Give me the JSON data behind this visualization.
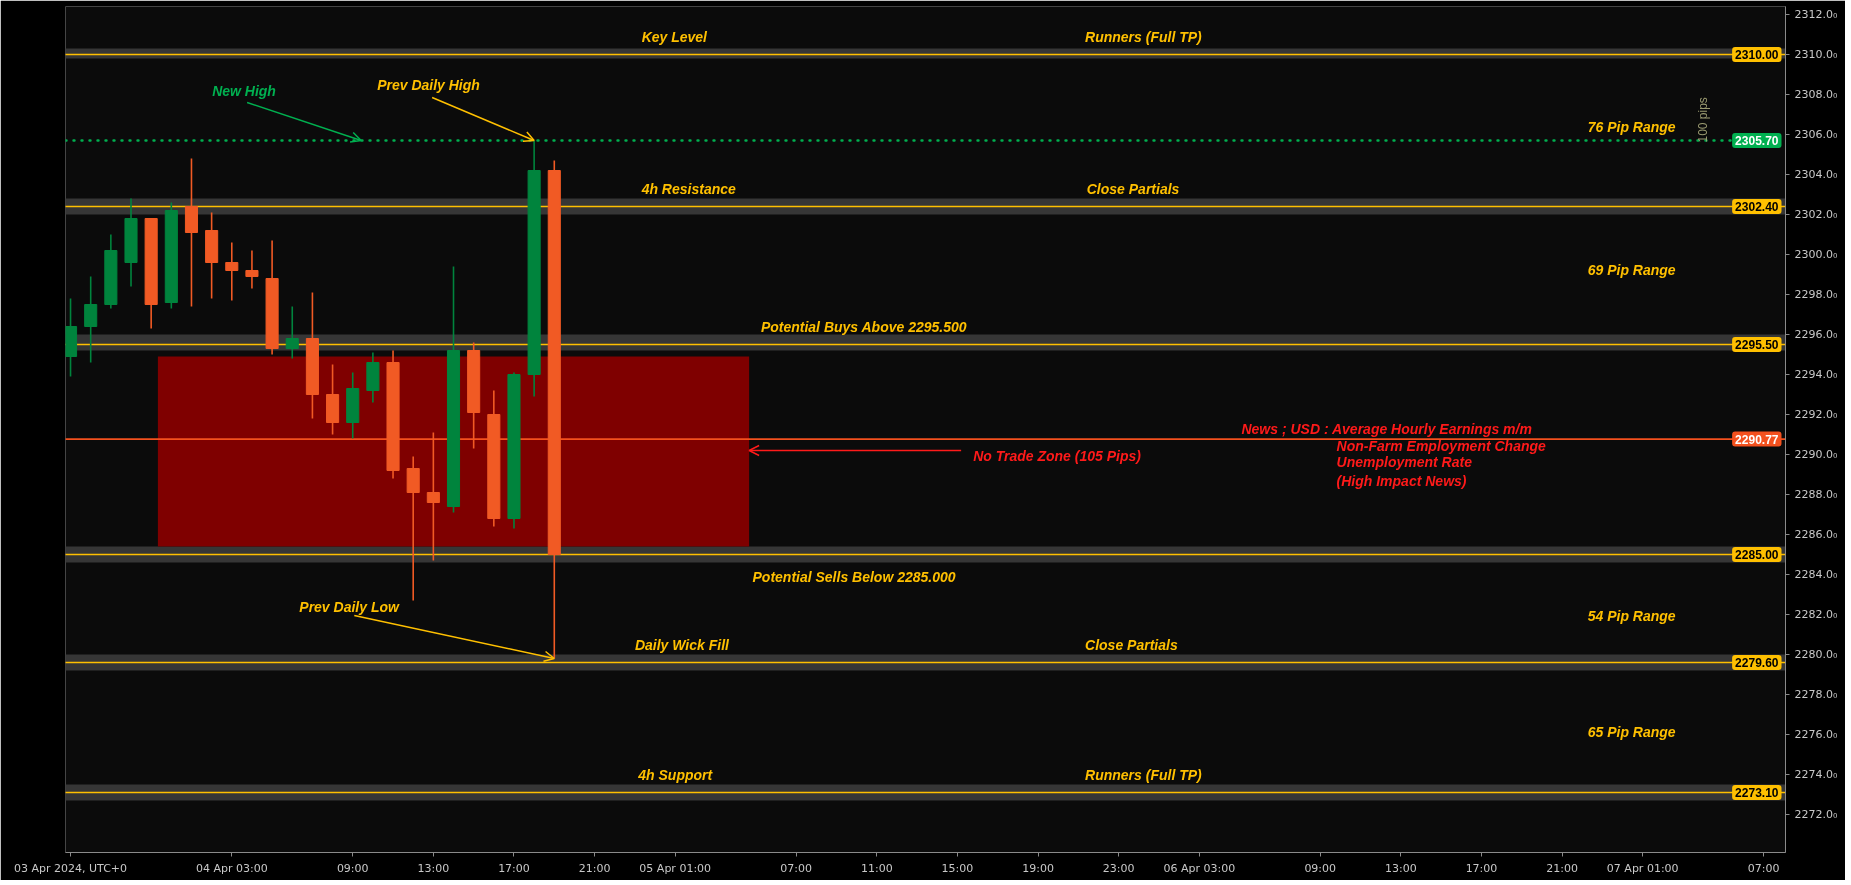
{
  "chart_data": {
    "type": "candlestick",
    "xlim": [
      "2024-04-03T18:45",
      "2024-04-07T08:05"
    ],
    "ylim": [
      2270.1,
      2312.4
    ],
    "xticks": [
      {
        "value": "2024-04-03T19:00",
        "label": "03 Apr 2024, UTC+0"
      },
      {
        "value": "2024-04-04T03:00",
        "label": "04 Apr 03:00"
      },
      {
        "value": "2024-04-04T09:00",
        "label": "09:00"
      },
      {
        "value": "2024-04-04T13:00",
        "label": "13:00"
      },
      {
        "value": "2024-04-04T17:00",
        "label": "17:00"
      },
      {
        "value": "2024-04-04T21:00",
        "label": "21:00"
      },
      {
        "value": "2024-04-05T01:00",
        "label": "05 Apr 01:00"
      },
      {
        "value": "2024-04-05T07:00",
        "label": "07:00"
      },
      {
        "value": "2024-04-05T11:00",
        "label": "11:00"
      },
      {
        "value": "2024-04-05T15:00",
        "label": "15:00"
      },
      {
        "value": "2024-04-05T19:00",
        "label": "19:00"
      },
      {
        "value": "2024-04-05T23:00",
        "label": "23:00"
      },
      {
        "value": "2024-04-06T03:00",
        "label": "06 Apr 03:00"
      },
      {
        "value": "2024-04-06T09:00",
        "label": "09:00"
      },
      {
        "value": "2024-04-06T13:00",
        "label": "13:00"
      },
      {
        "value": "2024-04-06T17:00",
        "label": "17:00"
      },
      {
        "value": "2024-04-06T21:00",
        "label": "21:00"
      },
      {
        "value": "2024-04-07T01:00",
        "label": "07 Apr 01:00"
      },
      {
        "value": "2024-04-07T07:00",
        "label": "07:00"
      }
    ],
    "yticks": [
      {
        "value": 2272,
        "label": "2272.0₀"
      },
      {
        "value": 2274,
        "label": "2274.0₀"
      },
      {
        "value": 2276,
        "label": "2276.0₀"
      },
      {
        "value": 2278,
        "label": "2278.0₀"
      },
      {
        "value": 2280,
        "label": "2280.0₀"
      },
      {
        "value": 2282,
        "label": "2282.0₀"
      },
      {
        "value": 2284,
        "label": "2284.0₀"
      },
      {
        "value": 2286,
        "label": "2286.0₀"
      },
      {
        "value": 2288,
        "label": "2288.0₀"
      },
      {
        "value": 2290,
        "label": "2290.0₀"
      },
      {
        "value": 2292,
        "label": "2292.0₀"
      },
      {
        "value": 2294,
        "label": "2294.0₀"
      },
      {
        "value": 2296,
        "label": "2296.0₀"
      },
      {
        "value": 2298,
        "label": "2298.0₀"
      },
      {
        "value": 2300,
        "label": "2300.0₀"
      },
      {
        "value": 2302,
        "label": "2302.0₀"
      },
      {
        "value": 2304,
        "label": "2304.0₀"
      },
      {
        "value": 2306,
        "label": "2306.0₀"
      },
      {
        "value": 2308,
        "label": "2308.0₀"
      },
      {
        "value": 2310,
        "label": "2310.0₀"
      },
      {
        "value": 2312,
        "label": "2312.0₀"
      }
    ],
    "series": [
      {
        "type": "area",
        "color": "#7f0000",
        "x": [
          "2024-04-03T23:20",
          "2024-04-05T04:40"
        ],
        "values": [
          2294.9,
          2294.9
        ]
      },
      {
        "x": [
          "2024-04-03T19:00",
          "2024-04-03T20:00",
          "2024-04-03T21:00",
          "2024-04-03T22:00",
          "2024-04-03T23:00",
          "2024-04-04T00:00",
          "2024-04-04T01:00",
          "2024-04-04T02:00",
          "2024-04-04T03:00",
          "2024-04-04T04:00",
          "2024-04-04T05:00",
          "2024-04-04T06:00",
          "2024-04-04T07:00",
          "2024-04-04T08:00",
          "2024-04-04T09:00",
          "2024-04-04T10:00",
          "2024-04-04T11:00",
          "2024-04-04T12:00",
          "2024-04-04T13:00",
          "2024-04-04T14:00",
          "2024-04-04T15:00",
          "2024-04-04T16:00",
          "2024-04-04T17:00",
          "2024-04-04T18:00",
          "2024-04-04T19:00"
        ],
        "ohlc": [
          [
            2294.9,
            2297.8,
            2293.9,
            2296.4
          ],
          [
            2296.4,
            2298.9,
            2294.6,
            2297.5
          ],
          [
            2297.5,
            2301.0,
            2297.3,
            2300.2
          ],
          [
            2299.6,
            2302.8,
            2298.4,
            2301.8
          ],
          [
            2301.8,
            2301.8,
            2296.3,
            2297.5
          ],
          [
            2297.6,
            2302.6,
            2297.3,
            2302.2
          ],
          [
            2302.4,
            2304.8,
            2297.4,
            2301.1
          ],
          [
            2301.2,
            2302.1,
            2297.8,
            2299.6
          ],
          [
            2299.6,
            2300.6,
            2297.7,
            2299.2
          ],
          [
            2299.2,
            2300.2,
            2298.3,
            2298.9
          ],
          [
            2298.8,
            2300.7,
            2295.0,
            2295.3
          ],
          [
            2295.3,
            2297.4,
            2294.8,
            2295.8
          ],
          [
            2295.8,
            2298.1,
            2291.8,
            2293.0
          ],
          [
            2293.0,
            2294.5,
            2291.0,
            2291.6
          ],
          [
            2291.6,
            2294.1,
            2290.8,
            2293.3
          ],
          [
            2293.2,
            2295.1,
            2292.6,
            2294.6
          ],
          [
            2294.6,
            2295.2,
            2288.8,
            2289.2
          ],
          [
            2289.3,
            2289.9,
            2282.7,
            2288.1
          ],
          [
            2288.1,
            2291.1,
            2284.7,
            2287.6
          ],
          [
            2287.4,
            2299.4,
            2287.1,
            2295.2
          ],
          [
            2295.2,
            2295.6,
            2290.3,
            2292.1
          ],
          [
            2292.0,
            2293.2,
            2286.4,
            2286.8
          ],
          [
            2286.8,
            2294.1,
            2286.3,
            2294.0
          ],
          [
            2294.0,
            2305.7,
            2292.9,
            2304.2
          ],
          [
            2304.2,
            2304.7,
            2279.8,
            2285.0
          ]
        ],
        "colors": [
          "#00843d",
          "#00843d",
          "#00843d",
          "#00843d",
          "#f15a24",
          "#00843d",
          "#f15a24",
          "#f15a24",
          "#f15a24",
          "#f15a24",
          "#f15a24",
          "#00843d",
          "#f15a24",
          "#f15a24",
          "#00843d",
          "#00843d",
          "#f15a24",
          "#f15a24",
          "#f15a24",
          "#00843d",
          "#f15a24",
          "#f15a24",
          "#00843d",
          "#00843d",
          "#f15a24"
        ]
      }
    ],
    "bands": [
      {
        "axis": "y",
        "from": 2309.8,
        "to": 2310.3,
        "color": "#363636"
      },
      {
        "axis": "y",
        "from": 2302.0,
        "to": 2302.8,
        "color": "#363636"
      },
      {
        "axis": "y",
        "from": 2295.2,
        "to": 2296.0,
        "color": "#363636"
      },
      {
        "axis": "y",
        "from": 2284.6,
        "to": 2285.4,
        "color": "#363636"
      },
      {
        "axis": "y",
        "from": 2279.2,
        "to": 2280.0,
        "color": "#363636"
      },
      {
        "axis": "y",
        "from": 2272.7,
        "to": 2273.5,
        "color": "#363636"
      }
    ],
    "ref_lines": [
      {
        "axis": "y",
        "value": 2310.0,
        "label": "2310.00",
        "color": "#ffc000"
      },
      {
        "axis": "y",
        "value": 2305.7,
        "label": "2305.70",
        "color": "#00b050",
        "line_style": "dotted"
      },
      {
        "axis": "y",
        "value": 2302.4,
        "label": "2302.40",
        "color": "#ffc000"
      },
      {
        "axis": "y",
        "value": 2295.5,
        "label": "2295.50",
        "color": "#ffc000"
      },
      {
        "axis": "y",
        "value": 2290.77,
        "label": "2290.77",
        "color": "#f4511e"
      },
      {
        "axis": "y",
        "value": 2285.0,
        "label": "2285.00",
        "color": "#ffc000"
      },
      {
        "axis": "y",
        "value": 2279.6,
        "label": "2279.60",
        "color": "#ffc000"
      },
      {
        "axis": "y",
        "value": 2273.1,
        "label": "2273.10",
        "color": "#ffc000"
      }
    ],
    "annotations": [
      {
        "text": "Key Level",
        "x": "2024-04-04T23:20",
        "y": 2310.0
      },
      {
        "text": "Runners (Full TP)",
        "x": "2024-04-05T21:20",
        "y": 2310.0
      },
      {
        "text": "New High",
        "x": "2024-04-04T09:25",
        "y": 2305.7
      },
      {
        "text": "Prev Daily High",
        "x": "2024-04-04T18:00",
        "y": 2305.7
      },
      "100 pips",
      "76 Pip Range",
      {
        "text": "4h Resistance",
        "x": "2024-04-04T23:20",
        "y": 2302.4
      },
      {
        "text": "Close Partials",
        "x": "2024-04-05T21:25",
        "y": 2302.4
      },
      "69 Pip Range",
      {
        "text": "Potential Buys Above 2295.500",
        "x": "2024-04-05T05:15",
        "y": 2295.5
      },
      "News ; USD : Average Hourly Earnings m/m",
      "Non-Farm Employment Change",
      "Unemployment Rate",
      "(High Impact News)",
      {
        "text": "No Trade Zone (105 Pips)",
        "x": "2024-04-05T04:40",
        "y": 2290.2
      },
      {
        "text": "Potential Sells Below 2285.000",
        "x": "2024-04-05T04:50",
        "y": 2285.0
      },
      {
        "text": "Prev Daily Low",
        "x": "2024-04-04T19:00",
        "y": 2279.8
      },
      "54 Pip Range",
      {
        "text": "Daily Wick Fill",
        "x": "2024-04-04T23:00",
        "y": 2279.6
      },
      {
        "text": "Close Partials",
        "x": "2024-04-05T21:20",
        "y": 2279.6
      },
      "65 Pip Range",
      {
        "text": "4h Support",
        "x": "2024-04-04T23:10",
        "y": 2273.1
      },
      {
        "text": "Runners (Full TP)",
        "x": "2024-04-05T21:20",
        "y": 2273.1
      }
    ]
  }
}
